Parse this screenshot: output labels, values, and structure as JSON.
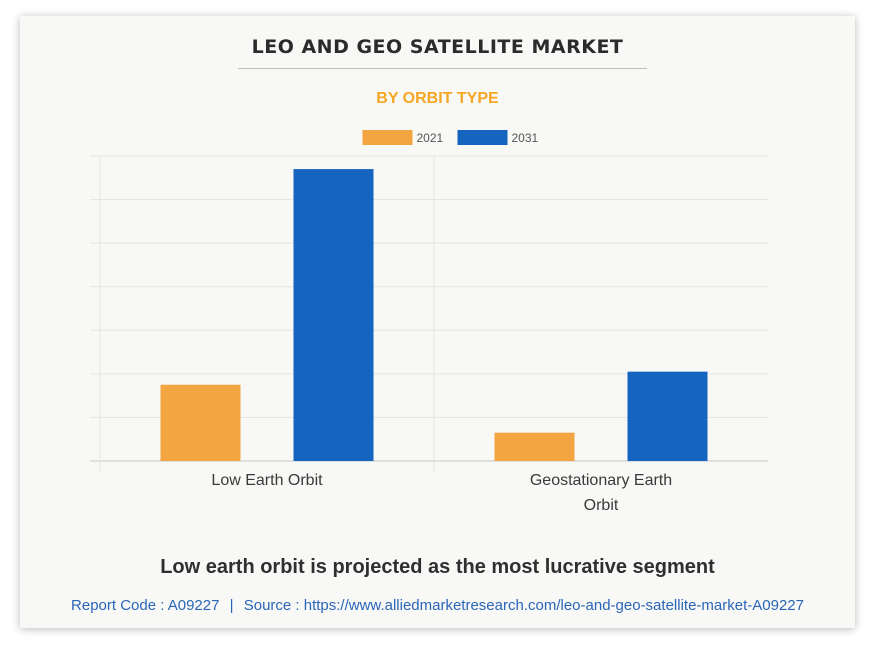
{
  "title": "LEO AND GEO SATELLITE MARKET",
  "subtitle": "BY ORBIT TYPE",
  "headline": "Low earth orbit is projected as the most lucrative segment",
  "footer": {
    "report_code": "Report Code : A09227",
    "separator": "|",
    "source": "Source : https://www.alliedmarketresearch.com/leo-and-geo-satellite-market-A09227"
  },
  "chart_data": {
    "type": "bar",
    "title": "LEO AND GEO SATELLITE MARKET",
    "subtitle": "BY ORBIT TYPE",
    "categories": [
      [
        "Low Earth Orbit"
      ],
      [
        "Geostationary Earth",
        "Orbit"
      ]
    ],
    "series": [
      {
        "name": "2021",
        "color": "#f2a541",
        "values": [
          17.5,
          6.5
        ]
      },
      {
        "name": "2031",
        "color": "#1565c0",
        "values": [
          67.0,
          20.5
        ]
      }
    ],
    "ylim": [
      0,
      70
    ],
    "y_gridlines": 7,
    "grid": true,
    "legend": "top-center",
    "y_tick_labels_shown": false
  }
}
